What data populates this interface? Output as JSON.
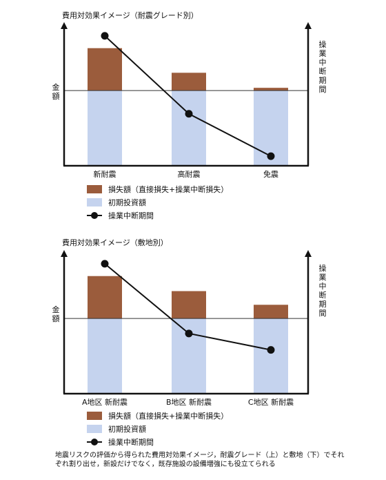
{
  "colors": {
    "loss": "#9b5c3c",
    "initial": "#c5d3ee",
    "line": "#111111"
  },
  "charts": [
    {
      "title": "費用対効果イメージ（耐震グレード別）",
      "ylabel_left": "金額",
      "ylabel_right": "操業中断期間",
      "legend": {
        "loss": "損失額（直接損失+操業中断損失）",
        "initial": "初期投資額",
        "line": "操業中断期間"
      }
    },
    {
      "title": "費用対効果イメージ（敷地別）",
      "ylabel_left": "金額",
      "ylabel_right": "操業中断期間",
      "legend": {
        "loss": "損失額（直接損失+操業中断損失）",
        "initial": "初期投資額",
        "line": "操業中断期間"
      }
    }
  ],
  "chart_data": [
    {
      "type": "bar",
      "title": "費用対効果イメージ（耐震グレード別）",
      "categories": [
        "新耐震",
        "高耐震",
        "免震"
      ],
      "stacked": true,
      "ylim": [
        0,
        1
      ],
      "series": [
        {
          "name": "初期投資額",
          "values": [
            0.55,
            0.55,
            0.55
          ]
        },
        {
          "name": "損失額（直接損失+操業中断損失）",
          "values": [
            0.31,
            0.13,
            0.02
          ]
        },
        {
          "name": "操業中断期間",
          "type": "line",
          "values": [
            0.95,
            0.38,
            0.07
          ]
        }
      ]
    },
    {
      "type": "bar",
      "title": "費用対効果イメージ（敷地別）",
      "categories": [
        "A地区 新耐震",
        "B地区 新耐震",
        "C地区 新耐震"
      ],
      "stacked": true,
      "ylim": [
        0,
        1
      ],
      "series": [
        {
          "name": "初期投資額",
          "values": [
            0.55,
            0.55,
            0.55
          ]
        },
        {
          "name": "損失額（直接損失+操業中断損失）",
          "values": [
            0.31,
            0.2,
            0.1
          ]
        },
        {
          "name": "操業中断期間",
          "type": "line",
          "values": [
            0.95,
            0.44,
            0.32
          ]
        }
      ]
    }
  ],
  "caption": "地震リスクの評価から得られた費用対効果イメージ，耐震グレード（上）と敷地（下）でそれぞれ割り出せ，新設だけでなく，既存施設の設備増強にも役立てられる"
}
